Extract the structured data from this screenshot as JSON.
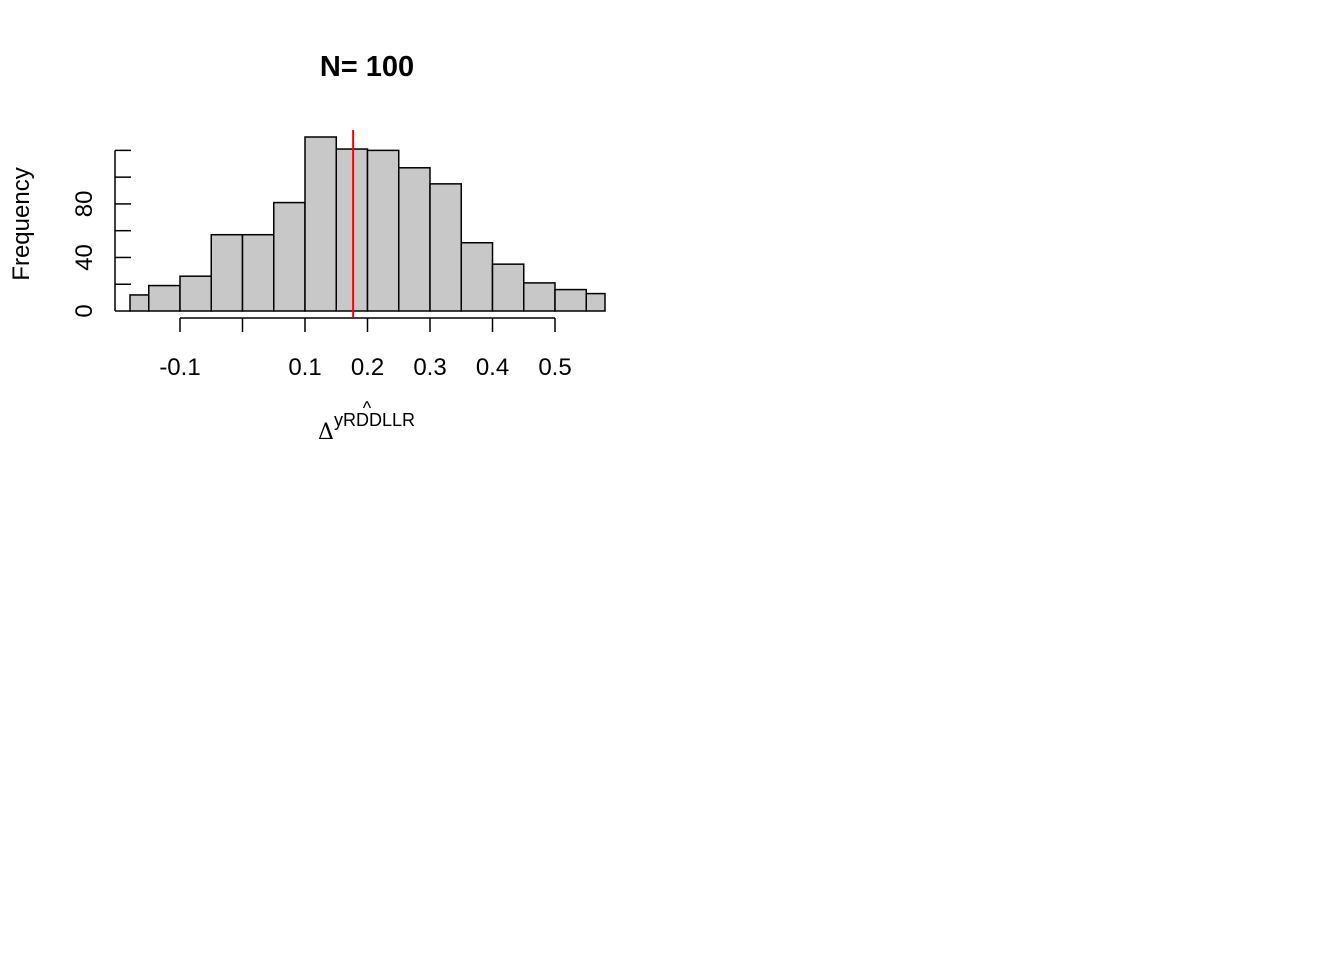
{
  "chart_data": {
    "type": "bar",
    "title": "N= 100",
    "xlabel": {
      "symbol": "Δ",
      "superscript": "yRDDLLR",
      "hat": "^"
    },
    "ylabel": "Frequency",
    "bins": [
      {
        "x0": -0.18,
        "x1": -0.15,
        "count": 12
      },
      {
        "x0": -0.15,
        "x1": -0.1,
        "count": 19
      },
      {
        "x0": -0.1,
        "x1": -0.05,
        "count": 26
      },
      {
        "x0": -0.05,
        "x1": 0.0,
        "count": 57
      },
      {
        "x0": 0.0,
        "x1": 0.05,
        "count": 57
      },
      {
        "x0": 0.05,
        "x1": 0.1,
        "count": 81
      },
      {
        "x0": 0.1,
        "x1": 0.15,
        "count": 130
      },
      {
        "x0": 0.15,
        "x1": 0.2,
        "count": 121
      },
      {
        "x0": 0.2,
        "x1": 0.25,
        "count": 120
      },
      {
        "x0": 0.25,
        "x1": 0.3,
        "count": 107
      },
      {
        "x0": 0.3,
        "x1": 0.35,
        "count": 95
      },
      {
        "x0": 0.35,
        "x1": 0.4,
        "count": 51
      },
      {
        "x0": 0.4,
        "x1": 0.45,
        "count": 35
      },
      {
        "x0": 0.45,
        "x1": 0.5,
        "count": 21
      },
      {
        "x0": 0.5,
        "x1": 0.55,
        "count": 16
      },
      {
        "x0": 0.55,
        "x1": 0.58,
        "count": 13
      }
    ],
    "vline": {
      "x": 0.177,
      "color": "#ff0000"
    },
    "xlim": [
      -0.18,
      0.58
    ],
    "ylim": [
      0,
      130
    ],
    "x_ticks": [
      -0.1,
      0.0,
      0.1,
      0.2,
      0.3,
      0.4,
      0.5
    ],
    "x_tick_labels": [
      "-0.1",
      "",
      "0.1",
      "0.2",
      "0.3",
      "0.4",
      "0.5"
    ],
    "y_ticks": [
      0,
      20,
      40,
      60,
      80,
      100,
      120
    ],
    "y_tick_labels": [
      "0",
      "",
      "40",
      "",
      "80",
      "",
      ""
    ],
    "bar_fill": "#c8c8c8",
    "bar_stroke": "#000000",
    "grid": false,
    "legend": "none"
  }
}
